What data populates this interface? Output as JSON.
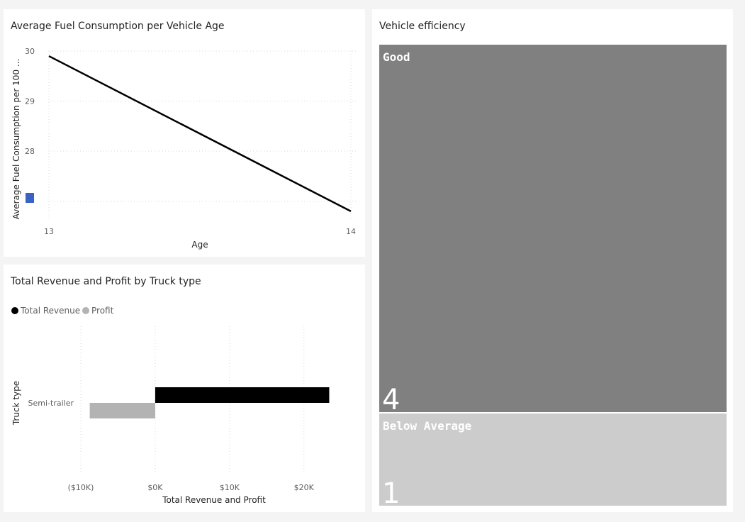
{
  "line_panel": {
    "title": "Average Fuel Consumption per Vehicle Age"
  },
  "bar_panel": {
    "title": "Total Revenue and Profit by Truck type"
  },
  "tree_panel": {
    "title": "Vehicle efficiency"
  },
  "colors": {
    "line": "#000000",
    "revenue": "#000000",
    "profit": "#b3b3b3",
    "tile_good": "#808080",
    "tile_below": "#cccccc",
    "marker": "#3a62c4"
  },
  "chart_data": [
    {
      "type": "line",
      "title": "Average Fuel Consumption per Vehicle Age",
      "xlabel": "Age",
      "ylabel": "Average Fuel Consumption per 100 ...",
      "x": [
        13,
        14
      ],
      "y": [
        29.9,
        26.8
      ],
      "x_ticks": [
        "13",
        "14"
      ],
      "y_ticks": [
        30,
        29,
        28
      ],
      "xlim": [
        13,
        14
      ],
      "ylim": [
        26.6,
        30
      ],
      "grid": true
    },
    {
      "type": "bar",
      "orientation": "horizontal",
      "title": "Total Revenue and Profit by Truck type",
      "xlabel": "Total Revenue and Profit",
      "ylabel": "Truck type",
      "categories": [
        "Semi-trailer"
      ],
      "series": [
        {
          "name": "Total Revenue",
          "values": [
            23400
          ]
        },
        {
          "name": "Profit",
          "values": [
            -8800
          ]
        }
      ],
      "x_ticks": [
        {
          "value": -10000,
          "label": "($10K)"
        },
        {
          "value": 0,
          "label": "$0K"
        },
        {
          "value": 10000,
          "label": "$10K"
        },
        {
          "value": 20000,
          "label": "$20K"
        }
      ],
      "xlim": [
        -10000,
        24500
      ],
      "legend": "top-left",
      "grid": true
    },
    {
      "type": "treemap",
      "title": "Vehicle efficiency",
      "items": [
        {
          "label": "Good",
          "value": 4
        },
        {
          "label": "Below Average",
          "value": 1
        }
      ]
    }
  ]
}
